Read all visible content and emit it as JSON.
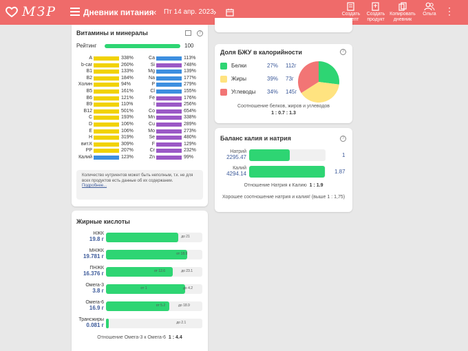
{
  "header": {
    "logo_text": "МЗР",
    "title": "Дневник питания",
    "date": "Пт 14 апр. 2023",
    "buttons": [
      {
        "label_line1": "Создать",
        "label_line2": "рецепт"
      },
      {
        "label_line1": "Создать",
        "label_line2": "продукт"
      },
      {
        "label_line1": "Копировать",
        "label_line2": "дневник"
      },
      {
        "label_line1": "Ольга",
        "label_line2": ""
      }
    ],
    "prev_arrow": "‹",
    "next_arrow": "›",
    "kebab": "⋮",
    "accent": "#ef6b6a"
  },
  "vitamins": {
    "title": "Витамины и минералы",
    "rating_label": "Рейтинг",
    "rating_value": "100",
    "rating_fraction": 1.0,
    "left": [
      {
        "name": "A",
        "pct": "338%",
        "color": "#f1d200"
      },
      {
        "name": "b-car",
        "pct": "260%",
        "color": "#f1d200"
      },
      {
        "name": "B1",
        "pct": "133%",
        "color": "#f1d200"
      },
      {
        "name": "B2",
        "pct": "184%",
        "color": "#f1d200"
      },
      {
        "name": "Холин",
        "pct": "94%",
        "color": "#f1d200"
      },
      {
        "name": "B5",
        "pct": "161%",
        "color": "#f1d200"
      },
      {
        "name": "B6",
        "pct": "121%",
        "color": "#f1d200"
      },
      {
        "name": "B9",
        "pct": "110%",
        "color": "#f1d200"
      },
      {
        "name": "B12",
        "pct": "501%",
        "color": "#f1d200"
      },
      {
        "name": "C",
        "pct": "193%",
        "color": "#f1d200"
      },
      {
        "name": "D",
        "pct": "106%",
        "color": "#f1d200"
      },
      {
        "name": "E",
        "pct": "106%",
        "color": "#f1d200"
      },
      {
        "name": "H",
        "pct": "319%",
        "color": "#f1d200"
      },
      {
        "name": "вит.К",
        "pct": "309%",
        "color": "#f1d200"
      },
      {
        "name": "PP",
        "pct": "207%",
        "color": "#f1d200"
      },
      {
        "name": "Калий",
        "pct": "123%",
        "color": "#3d8fe0"
      }
    ],
    "right": [
      {
        "name": "Ca",
        "pct": "113%",
        "color": "#3d8fe0"
      },
      {
        "name": "Si",
        "pct": "748%",
        "color": "#9b59c6"
      },
      {
        "name": "Mg",
        "pct": "139%",
        "color": "#3d8fe0"
      },
      {
        "name": "Na",
        "pct": "177%",
        "color": "#3d8fe0"
      },
      {
        "name": "P",
        "pct": "279%",
        "color": "#3d8fe0"
      },
      {
        "name": "Cl",
        "pct": "155%",
        "color": "#3d8fe0"
      },
      {
        "name": "Fe",
        "pct": "176%",
        "color": "#9b59c6"
      },
      {
        "name": "I",
        "pct": "256%",
        "color": "#9b59c6"
      },
      {
        "name": "Co",
        "pct": "654%",
        "color": "#9b59c6"
      },
      {
        "name": "Mn",
        "pct": "338%",
        "color": "#9b59c6"
      },
      {
        "name": "Cu",
        "pct": "289%",
        "color": "#9b59c6"
      },
      {
        "name": "Mo",
        "pct": "273%",
        "color": "#9b59c6"
      },
      {
        "name": "Se",
        "pct": "480%",
        "color": "#9b59c6"
      },
      {
        "name": "F",
        "pct": "129%",
        "color": "#9b59c6"
      },
      {
        "name": "Cr",
        "pct": "232%",
        "color": "#9b59c6"
      },
      {
        "name": "Zn",
        "pct": "99%",
        "color": "#9b59c6"
      }
    ],
    "note_text": "Количество нутриентов может быть неполным, т.к. не для всех продуктов есть данные об их содержании.",
    "note_link": "Подробнее..."
  },
  "fatty_acids": {
    "title": "Жирные кислоты",
    "rows": [
      {
        "name": "НЖК",
        "value": "19.8 г",
        "fill": 0.75,
        "tags": [
          {
            "text": "до 21",
            "pos": 0.78
          }
        ]
      },
      {
        "name": "МНЖК",
        "value": "19.781 г",
        "fill": 0.84,
        "tags": [
          {
            "text": "от 18.9",
            "pos": 0.73
          }
        ]
      },
      {
        "name": "ПНЖК",
        "value": "16.376 г",
        "fill": 0.69,
        "tags": [
          {
            "text": "от 12.6",
            "pos": 0.5
          },
          {
            "text": "до 23.1",
            "pos": 0.78
          }
        ]
      },
      {
        "name": "Омега-3",
        "value": "3.8 г",
        "fill": 0.82,
        "tags": [
          {
            "text": "от 1",
            "pos": 0.36
          },
          {
            "text": "до 4.2",
            "pos": 0.8
          }
        ]
      },
      {
        "name": "Омега-6",
        "value": "16.9 г",
        "fill": 0.66,
        "tags": [
          {
            "text": "от 5.2",
            "pos": 0.52
          },
          {
            "text": "до 18.9",
            "pos": 0.75
          }
        ]
      },
      {
        "name": "Трансжиры",
        "value": "0.081 г",
        "fill": 0.03,
        "tags": [
          {
            "text": "до 2.1",
            "pos": 0.73
          }
        ]
      }
    ],
    "ratio_label": "Отношение Омега-3 к Омега-6",
    "ratio_value": "1 : 4.4"
  },
  "bju": {
    "title": "Доля БЖУ в калорийности",
    "rows": [
      {
        "name": "Белки",
        "pct": "27%",
        "grams": "112г",
        "color": "#2ed573"
      },
      {
        "name": "Жиры",
        "pct": "39%",
        "grams": "73г",
        "color": "#ffe380"
      },
      {
        "name": "Углеводы",
        "pct": "34%",
        "grams": "145г",
        "color": "#f27575"
      }
    ],
    "ratio_label": "Соотношение белков, жиров и углеводов",
    "ratio_value": "1 : 0.7 : 1.3"
  },
  "sodium": {
    "title": "Баланс калия и натрия",
    "rows": [
      {
        "name": "Натрий",
        "value": "2295.47",
        "fill": 0.53,
        "ratio": "1"
      },
      {
        "name": "Калий",
        "value": "4294.14",
        "fill": 0.99,
        "ratio": "1.87"
      }
    ],
    "ratio_label": "Отношение Натрия к Калию",
    "ratio_value": "1 : 1.9",
    "comment": "Хорошее соотношение натрия и калия! (выше 1 : 1,75)"
  }
}
